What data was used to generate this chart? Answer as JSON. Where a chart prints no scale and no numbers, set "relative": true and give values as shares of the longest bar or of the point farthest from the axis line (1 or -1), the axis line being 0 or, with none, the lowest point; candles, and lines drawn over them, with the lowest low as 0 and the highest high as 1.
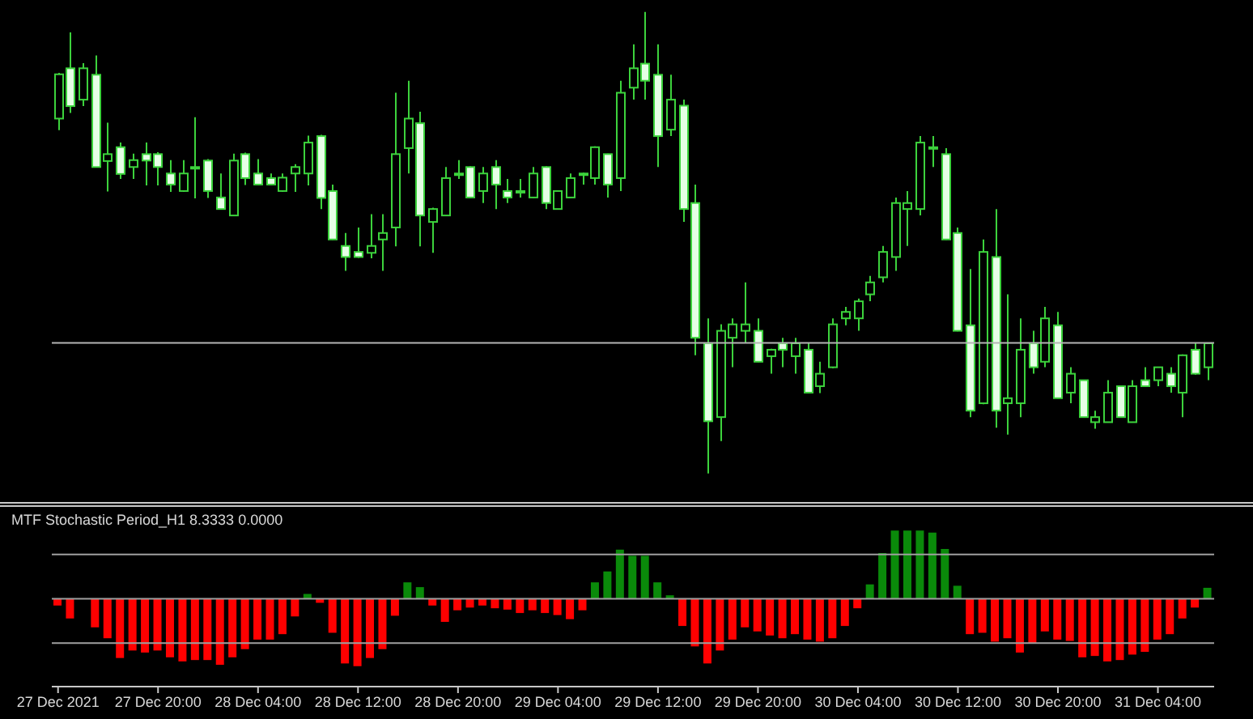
{
  "chart_data": [
    {
      "type": "candlestick",
      "relative": true,
      "tick_labels": false,
      "color": "#3cd23c",
      "categories": [
        "27 Dec 2021",
        null,
        null,
        null,
        null,
        null,
        null,
        null,
        "27 Dec 20:00",
        null,
        null,
        null,
        null,
        null,
        null,
        null,
        "28 Dec 04:00",
        null,
        null,
        null,
        null,
        null,
        null,
        null,
        "28 Dec 12:00",
        null,
        null,
        null,
        null,
        null,
        null,
        null,
        "28 Dec 20:00",
        null,
        null,
        null,
        null,
        null,
        null,
        null,
        "29 Dec 04:00",
        null,
        null,
        null,
        null,
        null,
        null,
        null,
        "29 Dec 12:00",
        null,
        null,
        null,
        null,
        null,
        null,
        null,
        "29 Dec 20:00",
        null,
        null,
        null,
        null,
        null,
        null,
        null,
        "30 Dec 04:00",
        null,
        null,
        null,
        null,
        null,
        null,
        null,
        "30 Dec 12:00",
        null,
        null,
        null,
        null,
        null,
        null,
        null,
        "30 Dec 20:00",
        null,
        null,
        null,
        null,
        null,
        null,
        null,
        "31 Dec 04:00",
        null,
        null,
        null,
        null
      ],
      "ohlc": [
        [
          0.769,
          0.868,
          0.744,
          0.865
        ],
        [
          0.878,
          0.956,
          0.781,
          0.796
        ],
        [
          0.81,
          0.889,
          0.796,
          0.878
        ],
        [
          0.864,
          0.906,
          0.663,
          0.664
        ],
        [
          0.677,
          0.76,
          0.611,
          0.692
        ],
        [
          0.707,
          0.717,
          0.638,
          0.649
        ],
        [
          0.664,
          0.693,
          0.638,
          0.679
        ],
        [
          0.692,
          0.717,
          0.624,
          0.678
        ],
        [
          0.692,
          0.696,
          0.624,
          0.664
        ],
        [
          0.65,
          0.679,
          0.61,
          0.626
        ],
        [
          0.612,
          0.679,
          0.61,
          0.65
        ],
        [
          0.664,
          0.772,
          0.596,
          0.664
        ],
        [
          0.678,
          0.681,
          0.597,
          0.612
        ],
        [
          0.598,
          0.65,
          0.572,
          0.573
        ],
        [
          0.559,
          0.693,
          0.558,
          0.678
        ],
        [
          0.692,
          0.695,
          0.625,
          0.64
        ],
        [
          0.65,
          0.681,
          0.625,
          0.626
        ],
        [
          0.64,
          0.65,
          0.625,
          0.626
        ],
        [
          0.612,
          0.65,
          0.61,
          0.641
        ],
        [
          0.65,
          0.67,
          0.61,
          0.664
        ],
        [
          0.65,
          0.732,
          0.624,
          0.717
        ],
        [
          0.731,
          0.734,
          0.573,
          0.597
        ],
        [
          0.612,
          0.626,
          0.506,
          0.507
        ],
        [
          0.493,
          0.521,
          0.439,
          0.469
        ],
        [
          0.48,
          0.533,
          0.467,
          0.469
        ],
        [
          0.478,
          0.562,
          0.466,
          0.493
        ],
        [
          0.507,
          0.562,
          0.439,
          0.521
        ],
        [
          0.533,
          0.825,
          0.492,
          0.692
        ],
        [
          0.705,
          0.851,
          0.65,
          0.769
        ],
        [
          0.759,
          0.784,
          0.492,
          0.559
        ],
        [
          0.545,
          0.576,
          0.478,
          0.573
        ],
        [
          0.559,
          0.664,
          0.558,
          0.64
        ],
        [
          0.65,
          0.679,
          0.638,
          0.65
        ],
        [
          0.664,
          0.666,
          0.597,
          0.598
        ],
        [
          0.612,
          0.664,
          0.586,
          0.65
        ],
        [
          0.664,
          0.679,
          0.573,
          0.626
        ],
        [
          0.612,
          0.638,
          0.586,
          0.598
        ],
        [
          0.612,
          0.638,
          0.598,
          0.612
        ],
        [
          0.598,
          0.664,
          0.597,
          0.65
        ],
        [
          0.664,
          0.666,
          0.573,
          0.586
        ],
        [
          0.573,
          0.612,
          0.572,
          0.612
        ],
        [
          0.598,
          0.65,
          0.597,
          0.64
        ],
        [
          0.65,
          0.652,
          0.626,
          0.65
        ],
        [
          0.64,
          0.709,
          0.626,
          0.707
        ],
        [
          0.692,
          0.693,
          0.598,
          0.626
        ],
        [
          0.64,
          0.851,
          0.612,
          0.825
        ],
        [
          0.836,
          0.93,
          0.81,
          0.878
        ],
        [
          0.888,
          1.0,
          0.81,
          0.851
        ],
        [
          0.864,
          0.93,
          0.664,
          0.731
        ],
        [
          0.745,
          0.864,
          0.731,
          0.81
        ],
        [
          0.797,
          0.81,
          0.545,
          0.573
        ],
        [
          0.586,
          0.626,
          0.256,
          0.294
        ],
        [
          0.282,
          0.336,
          0,
          0.113
        ],
        [
          0.122,
          0.323,
          0.07,
          0.309
        ],
        [
          0.294,
          0.336,
          0.23,
          0.323
        ],
        [
          0.309,
          0.414,
          0.282,
          0.323
        ],
        [
          0.309,
          0.336,
          0.241,
          0.242
        ],
        [
          0.254,
          0.27,
          0.216,
          0.268
        ],
        [
          0.282,
          0.294,
          0.23,
          0.268
        ],
        [
          0.254,
          0.294,
          0.216,
          0.282
        ],
        [
          0.268,
          0.282,
          0.174,
          0.175
        ],
        [
          0.189,
          0.242,
          0.174,
          0.216
        ],
        [
          0.23,
          0.336,
          0.228,
          0.323
        ],
        [
          0.336,
          0.361,
          0.321,
          0.35
        ],
        [
          0.336,
          0.379,
          0.309,
          0.373
        ],
        [
          0.388,
          0.428,
          0.373,
          0.414
        ],
        [
          0.425,
          0.493,
          0.414,
          0.48
        ],
        [
          0.469,
          0.598,
          0.439,
          0.586
        ],
        [
          0.573,
          0.612,
          0.493,
          0.586
        ],
        [
          0.573,
          0.731,
          0.559,
          0.717
        ],
        [
          0.707,
          0.731,
          0.664,
          0.707
        ],
        [
          0.692,
          0.705,
          0.506,
          0.507
        ],
        [
          0.521,
          0.533,
          0.308,
          0.309
        ],
        [
          0.321,
          0.443,
          0.122,
          0.136
        ],
        [
          0.152,
          0.507,
          0.15,
          0.48
        ],
        [
          0.469,
          0.573,
          0.099,
          0.136
        ],
        [
          0.152,
          0.388,
          0.084,
          0.163
        ],
        [
          0.152,
          0.336,
          0.122,
          0.268
        ],
        [
          0.282,
          0.309,
          0.216,
          0.23
        ],
        [
          0.242,
          0.361,
          0.23,
          0.336
        ],
        [
          0.321,
          0.35,
          0.162,
          0.163
        ],
        [
          0.175,
          0.23,
          0.152,
          0.216
        ],
        [
          0.202,
          0.203,
          0.121,
          0.122
        ],
        [
          0.111,
          0.136,
          0.097,
          0.122
        ],
        [
          0.111,
          0.202,
          0.11,
          0.175
        ],
        [
          0.189,
          0.19,
          0.121,
          0.122
        ],
        [
          0.111,
          0.202,
          0.11,
          0.189
        ],
        [
          0.202,
          0.23,
          0.188,
          0.189
        ],
        [
          0.202,
          0.231,
          0.189,
          0.23
        ],
        [
          0.216,
          0.23,
          0.175,
          0.189
        ],
        [
          0.175,
          0.258,
          0.122,
          0.256
        ],
        [
          0.268,
          0.282,
          0.214,
          0.216
        ],
        [
          0.23,
          0.283,
          0.202,
          0.282
        ]
      ],
      "colors": [
        "#000000",
        "#e6ffe6",
        "#000000",
        "#e6ffe6",
        "#000000",
        "#e6ffe6",
        "#000000",
        "#e6ffe6",
        "#e6ffe6",
        "#e6ffe6",
        "#000000",
        "#000000",
        "#e6ffe6",
        "#e6ffe6",
        "#000000",
        "#e6ffe6",
        "#e6ffe6",
        "#e6ffe6",
        "#000000",
        "#000000",
        "#000000",
        "#e6ffe6",
        "#e6ffe6",
        "#e6ffe6",
        "#e6ffe6",
        "#000000",
        "#000000",
        "#000000",
        "#000000",
        "#e6ffe6",
        "#000000",
        "#000000",
        "#000000",
        "#e6ffe6",
        "#000000",
        "#e6ffe6",
        "#e6ffe6",
        "#000000",
        "#000000",
        "#e6ffe6",
        "#000000",
        "#000000",
        "#000000",
        "#000000",
        "#e6ffe6",
        "#000000",
        "#000000",
        "#e6ffe6",
        "#e6ffe6",
        "#000000",
        "#e6ffe6",
        "#e6ffe6",
        "#e6ffe6",
        "#000000",
        "#000000",
        "#000000",
        "#e6ffe6",
        "#000000",
        "#e6ffe6",
        "#000000",
        "#e6ffe6",
        "#000000",
        "#000000",
        "#000000",
        "#000000",
        "#000000",
        "#000000",
        "#000000",
        "#000000",
        "#000000",
        "#000000",
        "#e6ffe6",
        "#e6ffe6",
        "#e6ffe6",
        "#000000",
        "#e6ffe6",
        "#000000",
        "#000000",
        "#e6ffe6",
        "#000000",
        "#e6ffe6",
        "#000000",
        "#e6ffe6",
        "#000000",
        "#000000",
        "#e6ffe6",
        "#000000",
        "#e6ffe6",
        "#000000",
        "#e6ffe6",
        "#000000",
        "#e6ffe6",
        "#000000"
      ],
      "ref_lines": [
        {
          "axis": "y",
          "value": 0.283,
          "color": "#b4b4b4"
        }
      ]
    },
    {
      "type": "bar",
      "relative": true,
      "tick_labels": "x",
      "title": "MTF Stochastic Period_H1 8.3333 0.0000",
      "categories": [
        "27 Dec 2021",
        null,
        null,
        null,
        null,
        null,
        null,
        null,
        "27 Dec 20:00",
        null,
        null,
        null,
        null,
        null,
        null,
        null,
        "28 Dec 04:00",
        null,
        null,
        null,
        null,
        null,
        null,
        null,
        "28 Dec 12:00",
        null,
        null,
        null,
        null,
        null,
        null,
        null,
        "28 Dec 20:00",
        null,
        null,
        null,
        null,
        null,
        null,
        null,
        "29 Dec 04:00",
        null,
        null,
        null,
        null,
        null,
        null,
        null,
        "29 Dec 12:00",
        null,
        null,
        null,
        null,
        null,
        null,
        null,
        "29 Dec 20:00",
        null,
        null,
        null,
        null,
        null,
        null,
        null,
        "30 Dec 04:00",
        null,
        null,
        null,
        null,
        null,
        null,
        null,
        "30 Dec 12:00",
        null,
        null,
        null,
        null,
        null,
        null,
        null,
        "30 Dec 20:00",
        null,
        null,
        null,
        null,
        null,
        null,
        null,
        "31 Dec 04:00",
        null,
        null,
        null,
        null
      ],
      "values": [
        -0.1,
        -0.29,
        0,
        -0.42,
        -0.58,
        -0.87,
        -0.76,
        -0.79,
        -0.76,
        -0.86,
        -0.92,
        -0.9,
        -0.9,
        -0.97,
        -0.86,
        -0.74,
        -0.6,
        -0.6,
        -0.52,
        -0.26,
        0.07,
        -0.06,
        -0.5,
        -0.95,
        -0.99,
        -0.87,
        -0.74,
        -0.25,
        0.24,
        0.17,
        -0.1,
        -0.34,
        -0.17,
        -0.13,
        -0.1,
        -0.14,
        -0.16,
        -0.21,
        -0.17,
        -0.21,
        -0.24,
        -0.3,
        -0.17,
        0.24,
        0.4,
        0.72,
        0.63,
        0.63,
        0.24,
        0.05,
        -0.4,
        -0.7,
        -0.95,
        -0.76,
        -0.6,
        -0.42,
        -0.48,
        -0.54,
        -0.58,
        -0.52,
        -0.6,
        -0.63,
        -0.58,
        -0.4,
        -0.14,
        0.21,
        0.67,
        1.0,
        1.0,
        1.0,
        0.97,
        0.73,
        0.19,
        -0.52,
        -0.5,
        -0.63,
        -0.58,
        -0.79,
        -0.66,
        -0.48,
        -0.6,
        -0.62,
        -0.86,
        -0.84,
        -0.92,
        -0.9,
        -0.82,
        -0.78,
        -0.6,
        -0.52,
        -0.29,
        -0.13,
        0.16
      ],
      "colors": [
        "#ff0000",
        "#ff0000",
        "#ff0000",
        "#ff0000",
        "#ff0000",
        "#ff0000",
        "#ff0000",
        "#ff0000",
        "#ff0000",
        "#ff0000",
        "#ff0000",
        "#ff0000",
        "#ff0000",
        "#ff0000",
        "#ff0000",
        "#ff0000",
        "#ff0000",
        "#ff0000",
        "#ff0000",
        "#ff0000",
        "#0a8a0a",
        "#ff0000",
        "#ff0000",
        "#ff0000",
        "#ff0000",
        "#ff0000",
        "#ff0000",
        "#ff0000",
        "#0a8a0a",
        "#0a8a0a",
        "#ff0000",
        "#ff0000",
        "#ff0000",
        "#ff0000",
        "#ff0000",
        "#ff0000",
        "#ff0000",
        "#ff0000",
        "#ff0000",
        "#ff0000",
        "#ff0000",
        "#ff0000",
        "#ff0000",
        "#0a8a0a",
        "#0a8a0a",
        "#0a8a0a",
        "#0a8a0a",
        "#0a8a0a",
        "#0a8a0a",
        "#0a8a0a",
        "#ff0000",
        "#ff0000",
        "#ff0000",
        "#ff0000",
        "#ff0000",
        "#ff0000",
        "#ff0000",
        "#ff0000",
        "#ff0000",
        "#ff0000",
        "#ff0000",
        "#ff0000",
        "#ff0000",
        "#ff0000",
        "#ff0000",
        "#0a8a0a",
        "#0a8a0a",
        "#0a8a0a",
        "#0a8a0a",
        "#0a8a0a",
        "#0a8a0a",
        "#0a8a0a",
        "#0a8a0a",
        "#ff0000",
        "#ff0000",
        "#ff0000",
        "#ff0000",
        "#ff0000",
        "#ff0000",
        "#ff0000",
        "#ff0000",
        "#ff0000",
        "#ff0000",
        "#ff0000",
        "#ff0000",
        "#ff0000",
        "#ff0000",
        "#ff0000",
        "#ff0000",
        "#ff0000",
        "#ff0000",
        "#ff0000",
        "#0a8a0a"
      ],
      "ref_lines": [
        {
          "axis": "y",
          "value": 0.65,
          "color": "#a0a0a0"
        },
        {
          "axis": "y",
          "value": 0,
          "color": "#a0a0a0"
        },
        {
          "axis": "y",
          "value": -0.65,
          "color": "#a0a0a0"
        }
      ]
    }
  ]
}
